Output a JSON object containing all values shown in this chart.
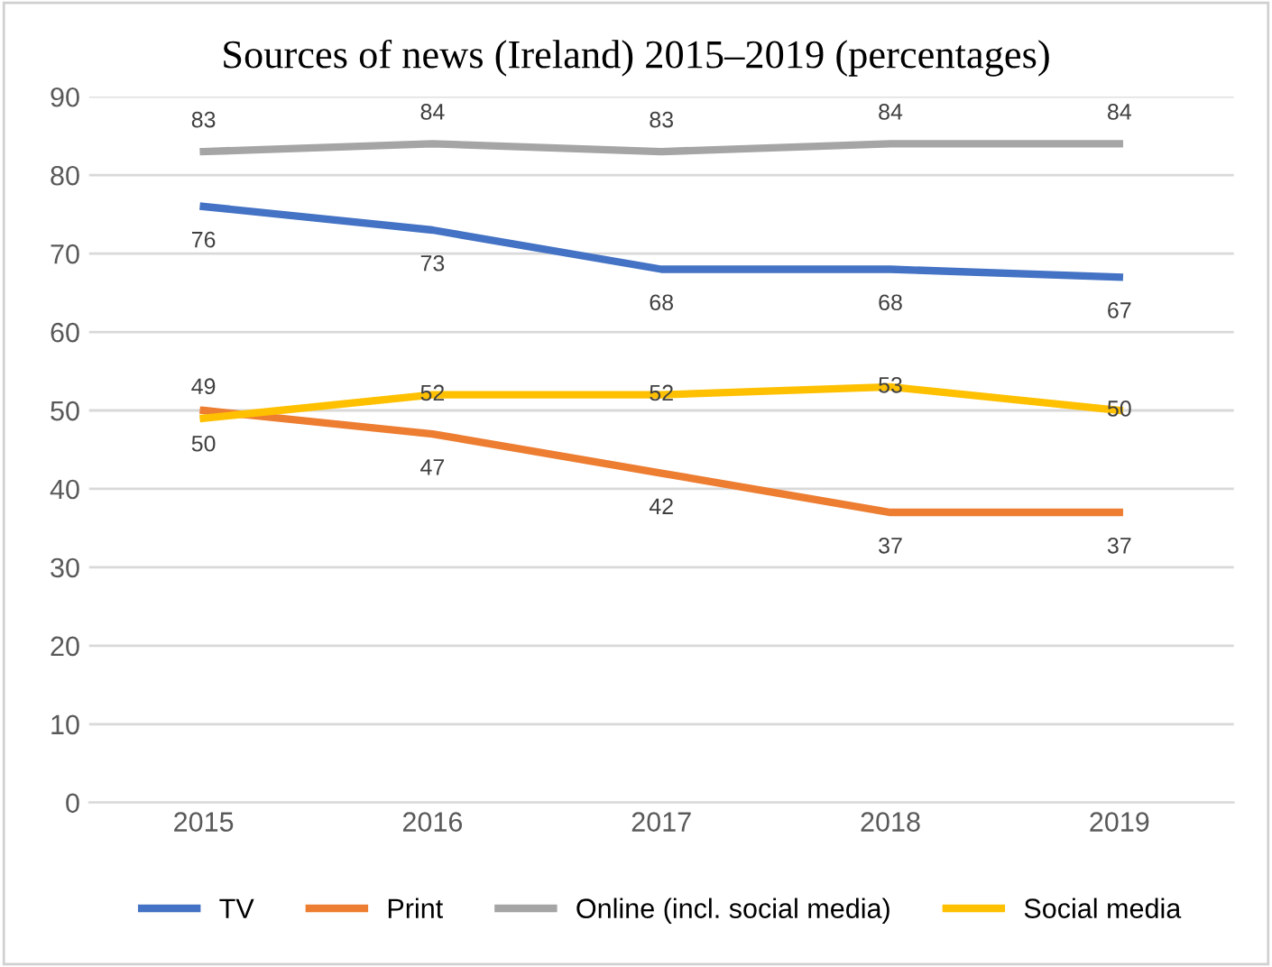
{
  "chart_data": {
    "type": "line",
    "title": "Sources of news (Ireland) 2015–2019 (percentages)",
    "categories": [
      "2015",
      "2016",
      "2017",
      "2018",
      "2019"
    ],
    "series": [
      {
        "name": "TV",
        "color": "#4472c4",
        "values": [
          76,
          73,
          68,
          68,
          67
        ]
      },
      {
        "name": "Print",
        "color": "#ed7d31",
        "values": [
          50,
          47,
          42,
          37,
          37
        ]
      },
      {
        "name": "Online (incl. social media)",
        "color": "#a5a5a5",
        "values": [
          83,
          84,
          83,
          84,
          84
        ]
      },
      {
        "name": "Social media",
        "color": "#ffc000",
        "values": [
          49,
          52,
          52,
          53,
          50
        ]
      }
    ],
    "ylim": [
      0,
      90
    ],
    "yticks": [
      0,
      10,
      20,
      30,
      40,
      50,
      60,
      70,
      80,
      90
    ],
    "grid": "y",
    "legend": "bottom",
    "data_labels": true,
    "marker": "none",
    "line_style": "solid"
  }
}
